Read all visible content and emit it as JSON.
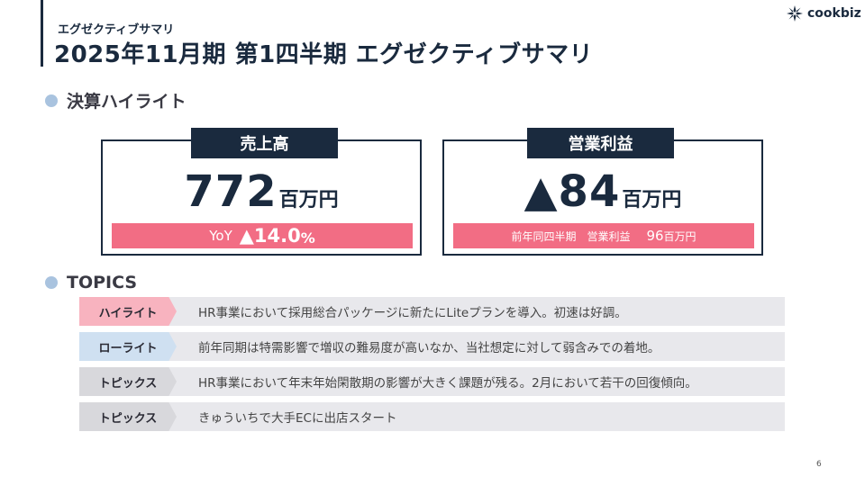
{
  "header": {
    "subtitle": "エグゼクティブサマリ",
    "title": "2025年11月期 第1四半期 エグゼクティブサマリ",
    "logo_text": "cookbiz"
  },
  "section_highlights": {
    "label": "決算ハイライト"
  },
  "card_sales": {
    "tab": "売上高",
    "value": "772",
    "unit": "百万円",
    "yoy_label": "YoY",
    "yoy_value": "▲14.0",
    "yoy_unit": "%"
  },
  "card_profit": {
    "tab": "営業利益",
    "value": "▲84",
    "unit": "百万円",
    "prev_label": "前年同四半期　営業利益",
    "prev_value": "96",
    "prev_unit": "百万円"
  },
  "section_topics": {
    "label": "TOPICS"
  },
  "topics": [
    {
      "tag": "ハイライト",
      "tag_color": "#f8b3bf",
      "text": "HR事業において採用総合パッケージに新たにLiteプランを導入。初速は好調。"
    },
    {
      "tag": "ローライト",
      "tag_color": "#cfe0f1",
      "text": "前年同期は特需影響で増収の難易度が高いなか、当社想定に対して弱含みでの着地。"
    },
    {
      "tag": "トピックス",
      "tag_color": "#d8d8dc",
      "text": "HR事業において年末年始閑散期の影響が大きく課題が残る。2月において若干の回復傾向。"
    },
    {
      "tag": "トピックス",
      "tag_color": "#d8d8dc",
      "text": "きゅういちで大手ECに出店スタート"
    }
  ],
  "page_number": "6",
  "colors": {
    "navy": "#1a2a3e",
    "accent_pink": "#f26d84",
    "dot_blue": "#a9c3df"
  }
}
